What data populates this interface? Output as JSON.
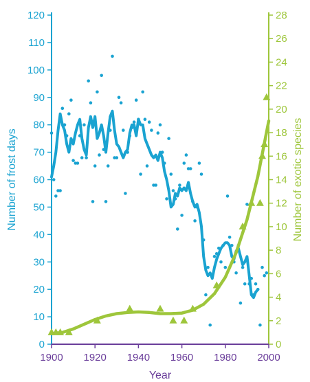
{
  "chart_data": {
    "type": "line",
    "xlabel": "Year",
    "ylabel_left": "Number of frost days",
    "ylabel_right": "Number of exotic species",
    "xlim": [
      1900,
      2000
    ],
    "ylim_left": [
      0,
      120
    ],
    "ylim_right": [
      0,
      28
    ],
    "x_ticks": [
      1900,
      1920,
      1940,
      1960,
      1980,
      2000
    ],
    "y_left_ticks": [
      0,
      10,
      20,
      30,
      40,
      50,
      60,
      70,
      80,
      90,
      100,
      110,
      120
    ],
    "y_right_ticks": [
      0,
      2,
      4,
      6,
      8,
      10,
      12,
      14,
      16,
      18,
      20,
      22,
      24,
      26,
      28
    ],
    "grid": false,
    "colors": {
      "frost": "#1aa3d1",
      "exotic": "#9ec63b",
      "x_axis": "#6a3d9a"
    },
    "series": [
      {
        "axis": "left",
        "kind": "scatter",
        "points": [
          [
            1900,
            77
          ],
          [
            1901,
            60
          ],
          [
            1902,
            54
          ],
          [
            1903,
            56
          ],
          [
            1904,
            56
          ],
          [
            1905,
            86
          ],
          [
            1906,
            80
          ],
          [
            1907,
            76
          ],
          [
            1908,
            84
          ],
          [
            1909,
            89
          ],
          [
            1910,
            67
          ],
          [
            1911,
            66
          ],
          [
            1912,
            66
          ],
          [
            1913,
            76
          ],
          [
            1914,
            68
          ],
          [
            1915,
            80
          ],
          [
            1916,
            68
          ],
          [
            1917,
            96
          ],
          [
            1918,
            88
          ],
          [
            1919,
            52
          ],
          [
            1920,
            65
          ],
          [
            1921,
            92
          ],
          [
            1922,
            69
          ],
          [
            1923,
            98
          ],
          [
            1924,
            71
          ],
          [
            1925,
            52
          ],
          [
            1926,
            65
          ],
          [
            1927,
            78
          ],
          [
            1928,
            105
          ],
          [
            1929,
            68
          ],
          [
            1930,
            68
          ],
          [
            1931,
            90
          ],
          [
            1932,
            88
          ],
          [
            1933,
            78
          ],
          [
            1934,
            55
          ],
          [
            1935,
            70
          ],
          [
            1936,
            76
          ],
          [
            1937,
            79
          ],
          [
            1938,
            81
          ],
          [
            1939,
            89
          ],
          [
            1940,
            82
          ],
          [
            1941,
            62
          ],
          [
            1942,
            92
          ],
          [
            1943,
            82
          ],
          [
            1944,
            65
          ],
          [
            1945,
            81
          ],
          [
            1946,
            78
          ],
          [
            1947,
            58
          ],
          [
            1948,
            58
          ],
          [
            1949,
            77
          ],
          [
            1950,
            80
          ],
          [
            1951,
            70
          ],
          [
            1952,
            66
          ],
          [
            1953,
            53
          ],
          [
            1954,
            75
          ],
          [
            1955,
            62
          ],
          [
            1956,
            56
          ],
          [
            1957,
            53
          ],
          [
            1958,
            42
          ],
          [
            1959,
            58
          ],
          [
            1960,
            47
          ],
          [
            1961,
            66
          ],
          [
            1962,
            69
          ],
          [
            1963,
            64
          ],
          [
            1964,
            64
          ],
          [
            1965,
            52
          ],
          [
            1966,
            45
          ],
          [
            1967,
            50
          ],
          [
            1968,
            66
          ],
          [
            1969,
            62
          ],
          [
            1970,
            38
          ],
          [
            1971,
            18
          ],
          [
            1972,
            28
          ],
          [
            1973,
            7
          ],
          [
            1974,
            25
          ],
          [
            1975,
            32
          ],
          [
            1976,
            33
          ],
          [
            1977,
            35
          ],
          [
            1978,
            30
          ],
          [
            1979,
            36
          ],
          [
            1980,
            28
          ],
          [
            1981,
            54
          ],
          [
            1982,
            39
          ],
          [
            1983,
            36
          ],
          [
            1984,
            30
          ],
          [
            1985,
            26
          ],
          [
            1986,
            36
          ],
          [
            1987,
            15
          ],
          [
            1988,
            28
          ],
          [
            1989,
            22
          ],
          [
            1990,
            51
          ],
          [
            1991,
            22
          ],
          [
            1992,
            24
          ],
          [
            1993,
            18
          ],
          [
            1994,
            22
          ],
          [
            1995,
            20
          ],
          [
            1996,
            7
          ],
          [
            1997,
            28
          ],
          [
            1998,
            25
          ],
          [
            1999,
            26
          ]
        ]
      },
      {
        "axis": "left",
        "kind": "line",
        "points": [
          [
            1900,
            61
          ],
          [
            1901,
            65
          ],
          [
            1902,
            70
          ],
          [
            1903,
            78
          ],
          [
            1904,
            84
          ],
          [
            1905,
            80
          ],
          [
            1906,
            78
          ],
          [
            1907,
            73
          ],
          [
            1908,
            70
          ],
          [
            1909,
            75
          ],
          [
            1910,
            73
          ],
          [
            1911,
            77
          ],
          [
            1912,
            80
          ],
          [
            1913,
            82
          ],
          [
            1914,
            75
          ],
          [
            1915,
            71
          ],
          [
            1916,
            69
          ],
          [
            1917,
            79
          ],
          [
            1918,
            83
          ],
          [
            1919,
            79
          ],
          [
            1920,
            83
          ],
          [
            1921,
            75
          ],
          [
            1922,
            77
          ],
          [
            1923,
            80
          ],
          [
            1924,
            76
          ],
          [
            1925,
            70
          ],
          [
            1926,
            77
          ],
          [
            1927,
            83
          ],
          [
            1928,
            85
          ],
          [
            1929,
            78
          ],
          [
            1930,
            73
          ],
          [
            1931,
            72
          ],
          [
            1932,
            70
          ],
          [
            1933,
            68
          ],
          [
            1934,
            70
          ],
          [
            1935,
            71
          ],
          [
            1936,
            77
          ],
          [
            1937,
            80
          ],
          [
            1938,
            80
          ],
          [
            1939,
            76
          ],
          [
            1940,
            82
          ],
          [
            1941,
            80
          ],
          [
            1942,
            80
          ],
          [
            1943,
            75
          ],
          [
            1944,
            73
          ],
          [
            1945,
            71
          ],
          [
            1946,
            69
          ],
          [
            1947,
            68
          ],
          [
            1948,
            69
          ],
          [
            1949,
            67
          ],
          [
            1950,
            70
          ],
          [
            1951,
            68
          ],
          [
            1952,
            63
          ],
          [
            1953,
            60
          ],
          [
            1954,
            56
          ],
          [
            1955,
            50
          ],
          [
            1956,
            51
          ],
          [
            1957,
            55
          ],
          [
            1958,
            54
          ],
          [
            1959,
            57
          ],
          [
            1960,
            56
          ],
          [
            1961,
            57
          ],
          [
            1962,
            56
          ],
          [
            1963,
            59
          ],
          [
            1964,
            55
          ],
          [
            1965,
            52
          ],
          [
            1966,
            50
          ],
          [
            1967,
            51
          ],
          [
            1968,
            48
          ],
          [
            1969,
            43
          ],
          [
            1970,
            32
          ],
          [
            1971,
            27
          ],
          [
            1972,
            25
          ],
          [
            1973,
            26
          ],
          [
            1974,
            24
          ],
          [
            1975,
            28
          ],
          [
            1976,
            31
          ],
          [
            1977,
            33
          ],
          [
            1978,
            35
          ],
          [
            1979,
            36
          ],
          [
            1980,
            37
          ],
          [
            1981,
            37
          ],
          [
            1982,
            36
          ],
          [
            1983,
            32
          ],
          [
            1984,
            31
          ],
          [
            1985,
            34
          ],
          [
            1986,
            35
          ],
          [
            1987,
            32
          ],
          [
            1988,
            29
          ],
          [
            1989,
            30
          ],
          [
            1990,
            32
          ],
          [
            1991,
            25
          ],
          [
            1992,
            18
          ],
          [
            1993,
            17
          ],
          [
            1994,
            19
          ],
          [
            1995,
            20
          ]
        ]
      },
      {
        "axis": "right",
        "kind": "scatter",
        "marker": "triangle",
        "points": [
          [
            1900,
            1
          ],
          [
            1902,
            1
          ],
          [
            1904,
            1
          ],
          [
            1908,
            1
          ],
          [
            1921,
            2
          ],
          [
            1936,
            3
          ],
          [
            1950,
            3
          ],
          [
            1956,
            2
          ],
          [
            1961,
            2
          ],
          [
            1965,
            3
          ],
          [
            1976,
            5
          ],
          [
            1988,
            10
          ],
          [
            1992,
            12
          ],
          [
            1996,
            12
          ],
          [
            1997,
            16
          ],
          [
            1998,
            17
          ],
          [
            1999,
            21
          ]
        ]
      },
      {
        "axis": "right",
        "kind": "line",
        "points": [
          [
            1900,
            0.9
          ],
          [
            1905,
            1.0
          ],
          [
            1910,
            1.3
          ],
          [
            1915,
            1.7
          ],
          [
            1920,
            2.1
          ],
          [
            1925,
            2.4
          ],
          [
            1930,
            2.6
          ],
          [
            1935,
            2.7
          ],
          [
            1940,
            2.75
          ],
          [
            1945,
            2.7
          ],
          [
            1950,
            2.6
          ],
          [
            1955,
            2.6
          ],
          [
            1960,
            2.65
          ],
          [
            1965,
            2.9
          ],
          [
            1970,
            3.4
          ],
          [
            1975,
            4.3
          ],
          [
            1980,
            5.7
          ],
          [
            1985,
            7.8
          ],
          [
            1990,
            10.6
          ],
          [
            1995,
            14.3
          ],
          [
            2000,
            19.0
          ]
        ]
      }
    ]
  }
}
